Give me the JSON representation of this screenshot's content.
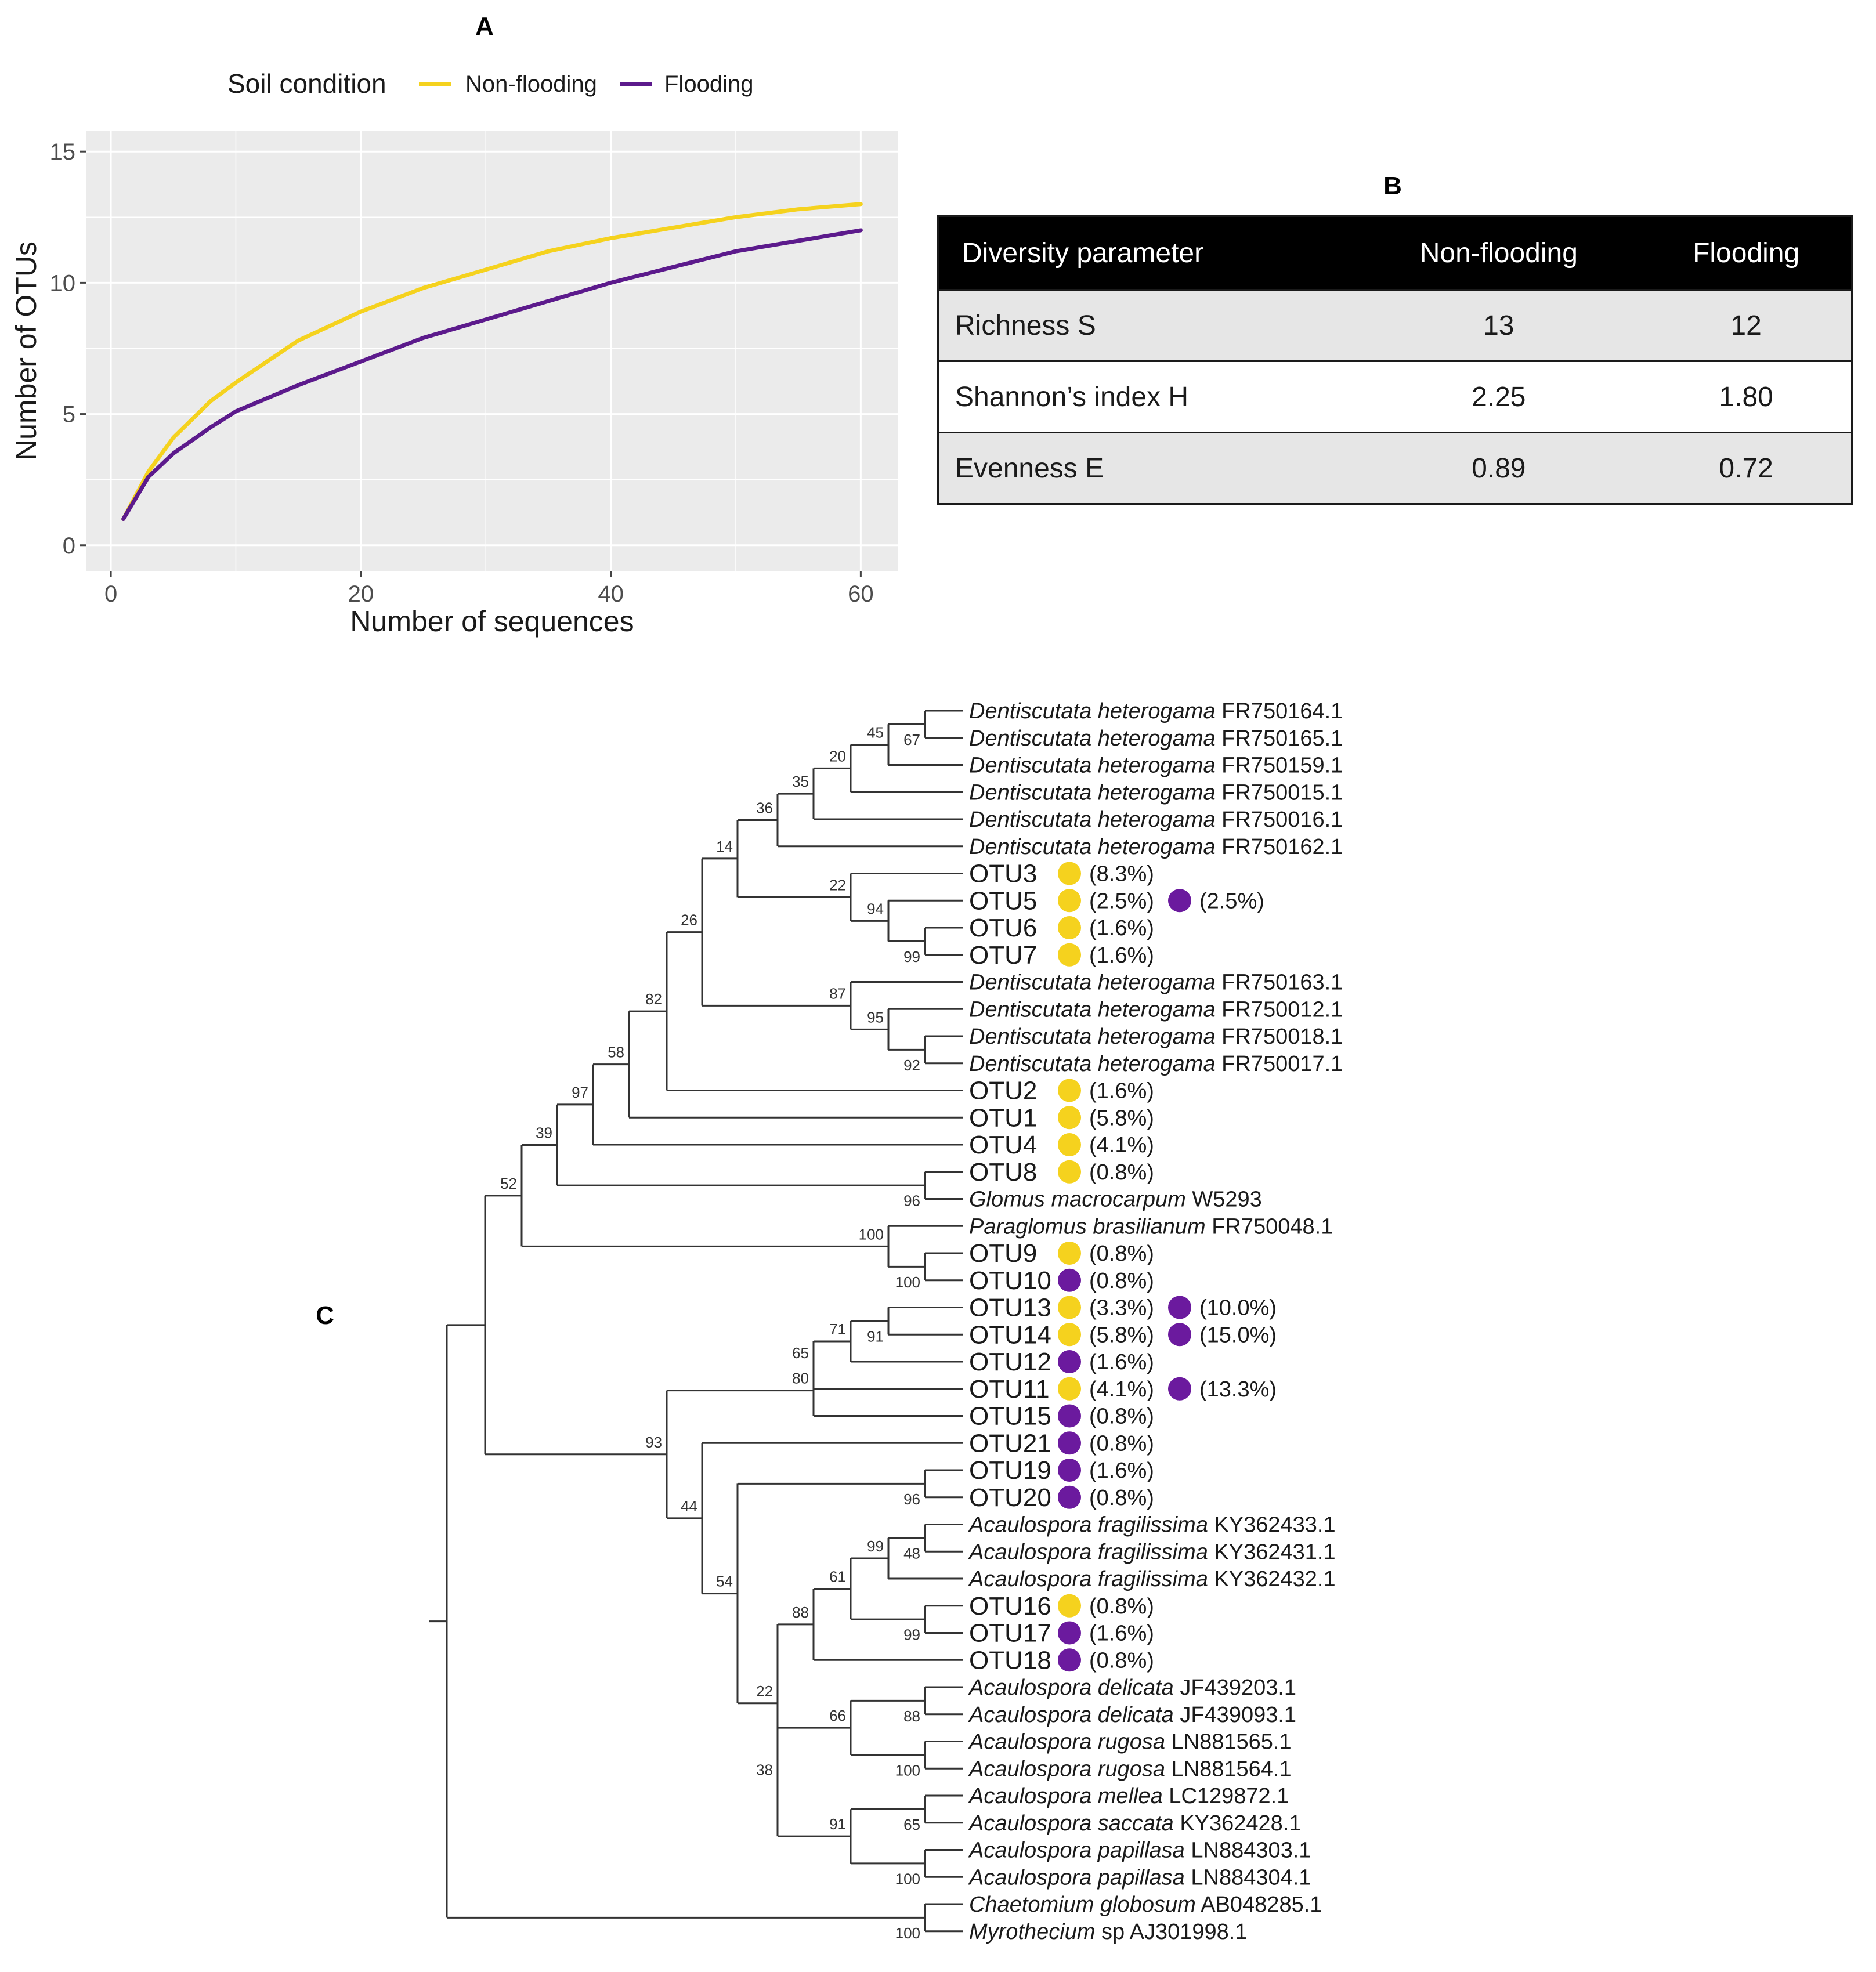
{
  "panel_a": {
    "letter": "A",
    "legend_title": "Soil condition",
    "colors": {
      "non_flooding": "#f5d21e",
      "flooding": "#5c1a8c",
      "panel_bg": "#ebebeb",
      "grid": "#ffffff"
    }
  },
  "panel_b": {
    "letter": "B",
    "header": [
      "Diversity parameter",
      "Non-flooding",
      "Flooding"
    ],
    "rows": [
      [
        "Richness S",
        "13",
        "12"
      ],
      [
        "Shannon’s index H",
        "2.25",
        "1.80"
      ],
      [
        "Evenness E",
        "0.89",
        "0.72"
      ]
    ]
  },
  "panel_c": {
    "letter": "C",
    "colors": {
      "non_flooding": "#f5d21e",
      "flooding": "#6b1a9e",
      "line": "#333333"
    }
  },
  "chart_data": [
    {
      "type": "line",
      "title": "",
      "xlabel": "Number of sequences",
      "ylabel": "Number of OTUs",
      "xlim": [
        -2,
        63
      ],
      "ylim": [
        -1,
        15.8
      ],
      "xticks": [
        0,
        20,
        40,
        60
      ],
      "yticks": [
        0,
        5,
        10,
        15
      ],
      "grid": true,
      "legend": {
        "title": "Soil condition",
        "placement": "top"
      },
      "series": [
        {
          "name": "Non-flooding",
          "color": "#f5d21e",
          "x": [
            1,
            3,
            5,
            8,
            10,
            15,
            20,
            25,
            30,
            35,
            40,
            45,
            50,
            55,
            60
          ],
          "y": [
            1.0,
            2.8,
            4.1,
            5.5,
            6.2,
            7.8,
            8.9,
            9.8,
            10.5,
            11.2,
            11.7,
            12.1,
            12.5,
            12.8,
            13.0
          ]
        },
        {
          "name": "Flooding",
          "color": "#5c1a8c",
          "x": [
            1,
            3,
            5,
            8,
            10,
            15,
            20,
            25,
            30,
            35,
            40,
            45,
            50,
            55,
            60
          ],
          "y": [
            1.0,
            2.6,
            3.5,
            4.5,
            5.1,
            6.1,
            7.0,
            7.9,
            8.6,
            9.3,
            10.0,
            10.6,
            11.2,
            11.6,
            12.0
          ]
        }
      ]
    },
    {
      "type": "table",
      "columns": [
        "Diversity parameter",
        "Non-flooding",
        "Flooding"
      ],
      "rows": [
        [
          "Richness S",
          13,
          12
        ],
        [
          "Shannon’s index H",
          2.25,
          1.8
        ],
        [
          "Evenness E",
          0.89,
          0.72
        ]
      ]
    },
    {
      "type": "tree",
      "tips": [
        {
          "id": "t1",
          "italic": "Dentiscutata heterogama",
          "acc": "FR750164.1"
        },
        {
          "id": "t2",
          "italic": "Dentiscutata heterogama",
          "acc": "FR750165.1"
        },
        {
          "id": "t3",
          "italic": "Dentiscutata heterogama",
          "acc": "FR750159.1"
        },
        {
          "id": "t4",
          "italic": "Dentiscutata heterogama",
          "acc": "FR750015.1"
        },
        {
          "id": "t5",
          "italic": "Dentiscutata heterogama",
          "acc": "FR750016.1"
        },
        {
          "id": "t6",
          "italic": "Dentiscutata heterogama",
          "acc": "FR750162.1"
        },
        {
          "id": "t7",
          "otu": "OTU3",
          "marks": [
            {
              "c": "nf",
              "p": "(8.3%)"
            }
          ]
        },
        {
          "id": "t8",
          "otu": "OTU5",
          "marks": [
            {
              "c": "nf",
              "p": "(2.5%)"
            },
            {
              "c": "f",
              "p": "(2.5%)"
            }
          ]
        },
        {
          "id": "t9",
          "otu": "OTU6",
          "marks": [
            {
              "c": "nf",
              "p": "(1.6%)"
            }
          ]
        },
        {
          "id": "t10",
          "otu": "OTU7",
          "marks": [
            {
              "c": "nf",
              "p": "(1.6%)"
            }
          ]
        },
        {
          "id": "t11",
          "italic": "Dentiscutata heterogama",
          "acc": "FR750163.1"
        },
        {
          "id": "t12",
          "italic": "Dentiscutata heterogama",
          "acc": "FR750012.1"
        },
        {
          "id": "t13",
          "italic": "Dentiscutata heterogama",
          "acc": "FR750018.1"
        },
        {
          "id": "t14",
          "italic": "Dentiscutata heterogama",
          "acc": "FR750017.1"
        },
        {
          "id": "t15",
          "otu": "OTU2",
          "marks": [
            {
              "c": "nf",
              "p": "(1.6%)"
            }
          ]
        },
        {
          "id": "t16",
          "otu": "OTU1",
          "marks": [
            {
              "c": "nf",
              "p": "(5.8%)"
            }
          ]
        },
        {
          "id": "t17",
          "otu": "OTU4",
          "marks": [
            {
              "c": "nf",
              "p": "(4.1%)"
            }
          ]
        },
        {
          "id": "t18",
          "otu": "OTU8",
          "marks": [
            {
              "c": "nf",
              "p": "(0.8%)"
            }
          ]
        },
        {
          "id": "t19",
          "italic": "Glomus macrocarpum",
          "acc": "W5293"
        },
        {
          "id": "t20",
          "italic": "Paraglomus brasilianum",
          "acc": "FR750048.1"
        },
        {
          "id": "t21",
          "otu": "OTU9",
          "marks": [
            {
              "c": "nf",
              "p": "(0.8%)"
            }
          ]
        },
        {
          "id": "t22",
          "otu": "OTU10",
          "marks": [
            {
              "c": "f",
              "p": "(0.8%)"
            }
          ]
        },
        {
          "id": "t23",
          "otu": "OTU13",
          "marks": [
            {
              "c": "nf",
              "p": "(3.3%)"
            },
            {
              "c": "f",
              "p": "(10.0%)"
            }
          ]
        },
        {
          "id": "t24",
          "otu": "OTU14",
          "marks": [
            {
              "c": "nf",
              "p": "(5.8%)"
            },
            {
              "c": "f",
              "p": "(15.0%)"
            }
          ]
        },
        {
          "id": "t25",
          "otu": "OTU12",
          "marks": [
            {
              "c": "f",
              "p": "(1.6%)"
            }
          ]
        },
        {
          "id": "t26",
          "otu": "OTU11",
          "marks": [
            {
              "c": "nf",
              "p": "(4.1%)"
            },
            {
              "c": "f",
              "p": "(13.3%)"
            }
          ]
        },
        {
          "id": "t27",
          "otu": "OTU15",
          "marks": [
            {
              "c": "f",
              "p": "(0.8%)"
            }
          ]
        },
        {
          "id": "t28",
          "otu": "OTU21",
          "marks": [
            {
              "c": "f",
              "p": "(0.8%)"
            }
          ]
        },
        {
          "id": "t29",
          "otu": "OTU19",
          "marks": [
            {
              "c": "f",
              "p": "(1.6%)"
            }
          ]
        },
        {
          "id": "t30",
          "otu": "OTU20",
          "marks": [
            {
              "c": "f",
              "p": "(0.8%)"
            }
          ]
        },
        {
          "id": "t31",
          "italic": "Acaulospora fragilissima",
          "acc": "KY362433.1"
        },
        {
          "id": "t32",
          "italic": "Acaulospora fragilissima",
          "acc": "KY362431.1"
        },
        {
          "id": "t33",
          "italic": "Acaulospora fragilissima",
          "acc": "KY362432.1"
        },
        {
          "id": "t34",
          "otu": "OTU16",
          "marks": [
            {
              "c": "nf",
              "p": "(0.8%)"
            }
          ]
        },
        {
          "id": "t35",
          "otu": "OTU17",
          "marks": [
            {
              "c": "f",
              "p": "(1.6%)"
            }
          ]
        },
        {
          "id": "t36",
          "otu": "OTU18",
          "marks": [
            {
              "c": "f",
              "p": "(0.8%)"
            }
          ]
        },
        {
          "id": "t37",
          "italic": "Acaulospora delicata",
          "acc": "JF439203.1"
        },
        {
          "id": "t38",
          "italic": "Acaulospora delicata",
          "acc": "JF439093.1"
        },
        {
          "id": "t39",
          "italic": "Acaulospora rugosa",
          "acc": "LN881565.1"
        },
        {
          "id": "t40",
          "italic": "Acaulospora rugosa",
          "acc": "LN881564.1"
        },
        {
          "id": "t41",
          "italic": "Acaulospora mellea",
          "acc": "LC129872.1"
        },
        {
          "id": "t42",
          "italic": "Acaulospora saccata",
          "acc": "KY362428.1"
        },
        {
          "id": "t43",
          "italic": "Acaulospora papillasa",
          "acc": "LN884303.1"
        },
        {
          "id": "t44",
          "italic": "Acaulospora papillasa",
          "acc": "LN884304.1"
        },
        {
          "id": "t45",
          "italic": "Chaetomium globosum",
          "acc": "AB048285.1"
        },
        {
          "id": "t46",
          "italic": "Myrothecium",
          "acc": "sp  AJ301998.1"
        }
      ],
      "nodes": [
        {
          "id": "n1",
          "children": [
            "t1",
            "t2"
          ],
          "support": "67"
        },
        {
          "id": "n2",
          "children": [
            "n1",
            "t3"
          ],
          "support": "45"
        },
        {
          "id": "n3",
          "children": [
            "n2",
            "t4"
          ],
          "support": "20"
        },
        {
          "id": "n4",
          "children": [
            "n3",
            "t5"
          ],
          "support": "35"
        },
        {
          "id": "n5",
          "children": [
            "n4",
            "t6"
          ],
          "support": "36"
        },
        {
          "id": "n6",
          "children": [
            "t9",
            "t10"
          ],
          "support": "99"
        },
        {
          "id": "n7",
          "children": [
            "t8",
            "n6"
          ],
          "support": "94"
        },
        {
          "id": "n8",
          "children": [
            "t7",
            "n7"
          ],
          "support": "22"
        },
        {
          "id": "n9",
          "children": [
            "n5",
            "n8"
          ],
          "support": "14"
        },
        {
          "id": "n10",
          "children": [
            "t13",
            "t14"
          ],
          "support": "92"
        },
        {
          "id": "n11",
          "children": [
            "t12",
            "n10"
          ],
          "support": "95"
        },
        {
          "id": "n12",
          "children": [
            "t11",
            "n11"
          ],
          "support": "87"
        },
        {
          "id": "n13",
          "children": [
            "n9",
            "n12"
          ],
          "support": "26"
        },
        {
          "id": "n14",
          "children": [
            "n13",
            "t15"
          ],
          "support": "82"
        },
        {
          "id": "n15",
          "children": [
            "n14",
            "t16"
          ],
          "support": "58"
        },
        {
          "id": "n16",
          "children": [
            "n15",
            "t17"
          ],
          "support": "97"
        },
        {
          "id": "n17",
          "children": [
            "t18",
            "t19"
          ],
          "support": "96"
        },
        {
          "id": "n18",
          "children": [
            "n16",
            "n17"
          ],
          "support": "39"
        },
        {
          "id": "n19",
          "children": [
            "t21",
            "t22"
          ],
          "support": "100"
        },
        {
          "id": "n20",
          "children": [
            "t20",
            "n19"
          ],
          "support": "100"
        },
        {
          "id": "n21",
          "children": [
            "n18",
            "n20"
          ],
          "support": "52"
        },
        {
          "id": "n22",
          "children": [
            "t23",
            "t24"
          ],
          "support": "91"
        },
        {
          "id": "n23",
          "children": [
            "n22",
            "t25"
          ],
          "support": "71"
        },
        {
          "id": "n24",
          "children": [
            "n23",
            "t26"
          ],
          "support": "65"
        },
        {
          "id": "n25",
          "children": [
            "n24",
            "t27"
          ],
          "support": "80"
        },
        {
          "id": "n26",
          "children": [
            "t29",
            "t30"
          ],
          "support": "96"
        },
        {
          "id": "n27",
          "children": [
            "t31",
            "t32"
          ],
          "support": "48"
        },
        {
          "id": "n28",
          "children": [
            "n27",
            "t33"
          ],
          "support": "99"
        },
        {
          "id": "n29",
          "children": [
            "t34",
            "t35"
          ],
          "support": "99"
        },
        {
          "id": "n30",
          "children": [
            "n28",
            "n29"
          ],
          "support": "61"
        },
        {
          "id": "n31",
          "children": [
            "n30",
            "t36"
          ],
          "support": "88"
        },
        {
          "id": "n32",
          "children": [
            "t37",
            "t38"
          ],
          "support": "88"
        },
        {
          "id": "n33",
          "children": [
            "t39",
            "t40"
          ],
          "support": "100"
        },
        {
          "id": "n34",
          "children": [
            "n32",
            "n33"
          ],
          "support": "66"
        },
        {
          "id": "n35",
          "children": [
            "t41",
            "t42"
          ],
          "support": "65"
        },
        {
          "id": "n36",
          "children": [
            "t43",
            "t44"
          ],
          "support": "100"
        },
        {
          "id": "n37",
          "children": [
            "n35",
            "n36"
          ],
          "support": "91"
        },
        {
          "id": "n38",
          "children": [
            "n34",
            "n37"
          ],
          "support": "38"
        },
        {
          "id": "n39",
          "children": [
            "n31",
            "n38"
          ],
          "support": "22"
        },
        {
          "id": "n40",
          "children": [
            "n26",
            "n39"
          ],
          "support": "54"
        },
        {
          "id": "n41",
          "children": [
            "t28",
            "n40"
          ],
          "support": "44"
        },
        {
          "id": "n42",
          "children": [
            "n25",
            "n41"
          ],
          "support": "93"
        },
        {
          "id": "n43",
          "children": [
            "n21",
            "n42"
          ],
          "support": ""
        },
        {
          "id": "n44",
          "children": [
            "t45",
            "t46"
          ],
          "support": "100"
        },
        {
          "id": "root",
          "children": [
            "n43",
            "n44"
          ],
          "support": ""
        }
      ]
    }
  ]
}
